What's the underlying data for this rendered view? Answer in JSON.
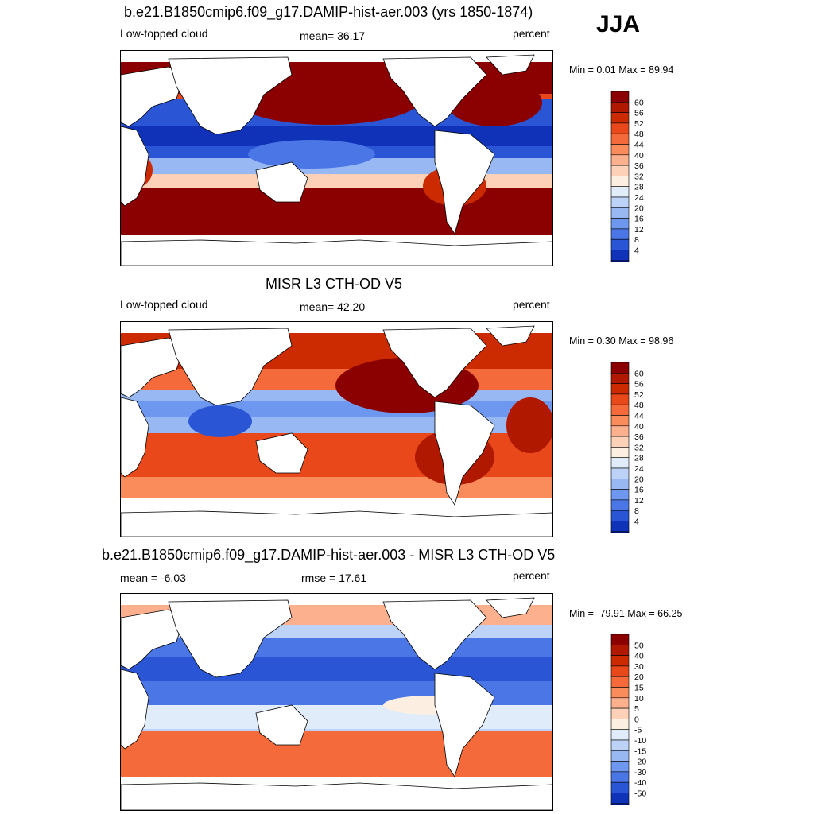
{
  "season": "JJA",
  "panels": [
    {
      "title": "b.e21.B1850cmip6.f09_g17.DAMIP-hist-aer.003 (yrs 1850-1874)",
      "left_label": "Low-topped cloud",
      "center_label": "mean=  36.17",
      "right_label": "percent",
      "minmax": "Min =   0.01 Max =  89.94"
    },
    {
      "title": "MISR L3 CTH-OD V5",
      "left_label": "Low-topped cloud",
      "center_label": "mean=  42.20",
      "right_label": "percent",
      "minmax": "Min =   0.30 Max =  98.96"
    },
    {
      "title": "b.e21.B1850cmip6.f09_g17.DAMIP-hist-aer.003 - MISR L3 CTH-OD V5",
      "left_label": "mean =  -6.03",
      "center_label": "rmse =  17.61",
      "right_label": "percent",
      "minmax": "Min = -79.91 Max =  66.25"
    }
  ],
  "chart_data": [
    {
      "type": "heatmap",
      "title": "b.e21.B1850cmip6.f09_g17.DAMIP-hist-aer.003 (yrs 1850-1874)",
      "variable": "Low-topped cloud",
      "units": "percent",
      "mean": 36.17,
      "min": 0.01,
      "max": 89.94,
      "colorbar_levels": [
        60,
        56,
        52,
        48,
        44,
        40,
        36,
        32,
        28,
        24,
        20,
        16,
        12,
        8,
        4
      ],
      "colorbar_colors": [
        "#8b0000",
        "#b01800",
        "#cc2a00",
        "#e8481a",
        "#f46a3a",
        "#fa8c5c",
        "#fcb08e",
        "#fdd0b8",
        "#fdeee2",
        "#e0ecfa",
        "#bcd2f7",
        "#98b8f3",
        "#6e98ef",
        "#4a76e6",
        "#2a56d6",
        "#1032b8",
        "#00147a"
      ]
    },
    {
      "type": "heatmap",
      "title": "MISR L3 CTH-OD V5",
      "variable": "Low-topped cloud",
      "units": "percent",
      "mean": 42.2,
      "min": 0.3,
      "max": 98.96,
      "colorbar_levels": [
        60,
        56,
        52,
        48,
        44,
        40,
        36,
        32,
        28,
        24,
        20,
        16,
        12,
        8,
        4
      ],
      "colorbar_colors": [
        "#8b0000",
        "#b01800",
        "#cc2a00",
        "#e8481a",
        "#f46a3a",
        "#fa8c5c",
        "#fcb08e",
        "#fdd0b8",
        "#fdeee2",
        "#e0ecfa",
        "#bcd2f7",
        "#98b8f3",
        "#6e98ef",
        "#4a76e6",
        "#2a56d6",
        "#1032b8",
        "#00147a"
      ]
    },
    {
      "type": "heatmap",
      "title": "b.e21.B1850cmip6.f09_g17.DAMIP-hist-aer.003 - MISR L3 CTH-OD V5",
      "units": "percent",
      "mean": -6.03,
      "rmse": 17.61,
      "min": -79.91,
      "max": 66.25,
      "colorbar_levels": [
        50,
        40,
        30,
        20,
        15,
        10,
        5,
        0,
        -5,
        -10,
        -15,
        -20,
        -30,
        -40,
        -50
      ],
      "colorbar_colors": [
        "#8b0000",
        "#b01800",
        "#cc2a00",
        "#e8481a",
        "#f46a3a",
        "#fa8c5c",
        "#fcb08e",
        "#fdd0b8",
        "#fdeee2",
        "#e0ecfa",
        "#bcd2f7",
        "#98b8f3",
        "#6e98ef",
        "#4a76e6",
        "#2a56d6",
        "#1032b8",
        "#00147a"
      ]
    }
  ]
}
